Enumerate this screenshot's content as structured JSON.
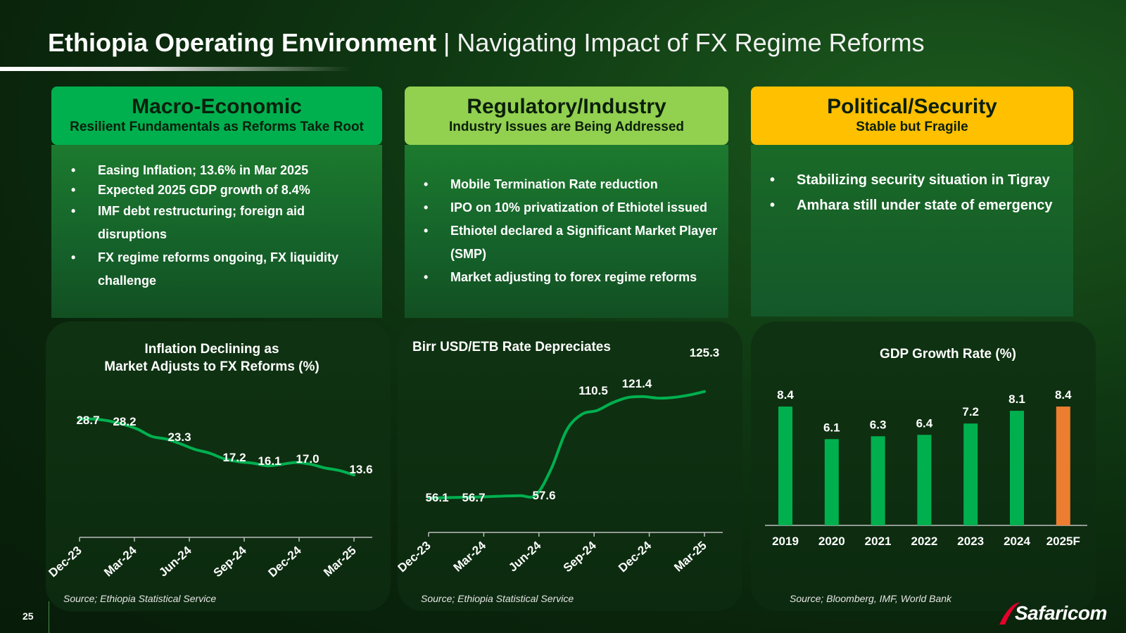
{
  "header": {
    "title_bold": "Ethiopia Operating Environment",
    "separator": "|",
    "title_light": "Navigating Impact of FX Regime Reforms"
  },
  "cards": {
    "macro": {
      "title": "Macro-Economic",
      "subtitle": "Resilient Fundamentals as Reforms Take Root",
      "color": "#00b04f",
      "bullets": [
        "Easing Inflation; 13.6% in Mar 2025",
        "Expected 2025 GDP growth of 8.4%",
        "IMF debt restructuring; foreign aid disruptions",
        "FX regime reforms ongoing, FX liquidity challenge"
      ]
    },
    "regulatory": {
      "title": "Regulatory/Industry",
      "subtitle": "Industry Issues are Being Addressed",
      "color": "#92d050",
      "bullets": [
        "Mobile Termination Rate reduction",
        "IPO on 10% privatization of Ethiotel issued",
        "Ethiotel declared a Significant Market Player (SMP)",
        "Market adjusting to forex regime reforms"
      ]
    },
    "political": {
      "title": "Political/Security",
      "subtitle": "Stable but Fragile",
      "color": "#ffc000",
      "bullets": [
        "Stabilizing security situation in Tigray",
        "Amhara still under state of emergency"
      ]
    }
  },
  "chart_data": [
    {
      "id": "inflation",
      "type": "line",
      "title_line1": "Inflation Declining as",
      "title_line2": "Market Adjusts to FX Reforms (%)",
      "x_ticks": [
        "Dec-23",
        "Mar-24",
        "Jun-24",
        "Sep-24",
        "Dec-24",
        "Mar-25"
      ],
      "labeled_points": [
        {
          "x": "Dec-23",
          "value": 28.7,
          "label": "28.7"
        },
        {
          "x": "Jan-24",
          "value": 28.2,
          "label": "28.2"
        },
        {
          "x": "May-24",
          "value": 23.3,
          "label": "23.3"
        },
        {
          "x": "Sep-24",
          "value": 17.2,
          "label": "17.2"
        },
        {
          "x": "Oct-24",
          "value": 16.1,
          "label": "16.1"
        },
        {
          "x": "Dec-24",
          "value": 17.0,
          "label": "17.0"
        },
        {
          "x": "Mar-25",
          "value": 13.6,
          "label": "13.6"
        }
      ],
      "series_values": [
        28.7,
        28.7,
        28.2,
        27.3,
        26.0,
        24.0,
        23.3,
        22.0,
        20.5,
        19.5,
        18.0,
        17.2,
        16.8,
        16.1,
        16.5,
        17.0,
        16.5,
        15.5,
        14.8,
        13.6
      ],
      "line_color": "#00b04f",
      "ylim": [
        0,
        30
      ],
      "source": "Source; Ethiopia Statistical Service"
    },
    {
      "id": "fx",
      "type": "line",
      "title": "Birr USD/ETB Rate Depreciates",
      "x_ticks": [
        "Dec-23",
        "Mar-24",
        "Jun-24",
        "Sep-24",
        "Dec-24",
        "Mar-25"
      ],
      "labeled_points": [
        {
          "x": "Dec-23",
          "value": 56.1,
          "label": "56.1"
        },
        {
          "x": "Mar-24",
          "value": 56.7,
          "label": "56.7"
        },
        {
          "x": "Jun-24",
          "value": 57.6,
          "label": "57.6"
        },
        {
          "x": "Sep-24",
          "value": 110.5,
          "label": "110.5"
        },
        {
          "x": "Dec-24",
          "value": 121.4,
          "label": "121.4"
        },
        {
          "x": "Mar-25",
          "value": 125.3,
          "label": "125.3"
        }
      ],
      "series_values": [
        56.1,
        56.3,
        56.5,
        56.7,
        57.0,
        57.4,
        57.6,
        58.0,
        75.0,
        100.0,
        110.5,
        113.0,
        118.0,
        121.4,
        122.0,
        121.0,
        121.5,
        123.0,
        125.3
      ],
      "line_color": "#00b04f",
      "ylim": [
        40,
        130
      ],
      "source": "Source; Ethiopia Statistical Service"
    },
    {
      "id": "gdp",
      "type": "bar",
      "title": "GDP Growth Rate (%)",
      "categories": [
        "2019",
        "2020",
        "2021",
        "2022",
        "2023",
        "2024",
        "2025F"
      ],
      "values": [
        8.4,
        6.1,
        6.3,
        6.4,
        7.2,
        8.1,
        8.4
      ],
      "labels": [
        "8.4",
        "6.1",
        "6.3",
        "6.4",
        "7.2",
        "8.1",
        "8.4"
      ],
      "colors": [
        "#00b04f",
        "#00b04f",
        "#00b04f",
        "#00b04f",
        "#00b04f",
        "#00b04f",
        "#ed7d31"
      ],
      "ylim": [
        0,
        9
      ],
      "source": "Source; Bloomberg, IMF, World Bank"
    }
  ],
  "footer": {
    "page_number": "25",
    "logo_text": "Safaricom"
  }
}
